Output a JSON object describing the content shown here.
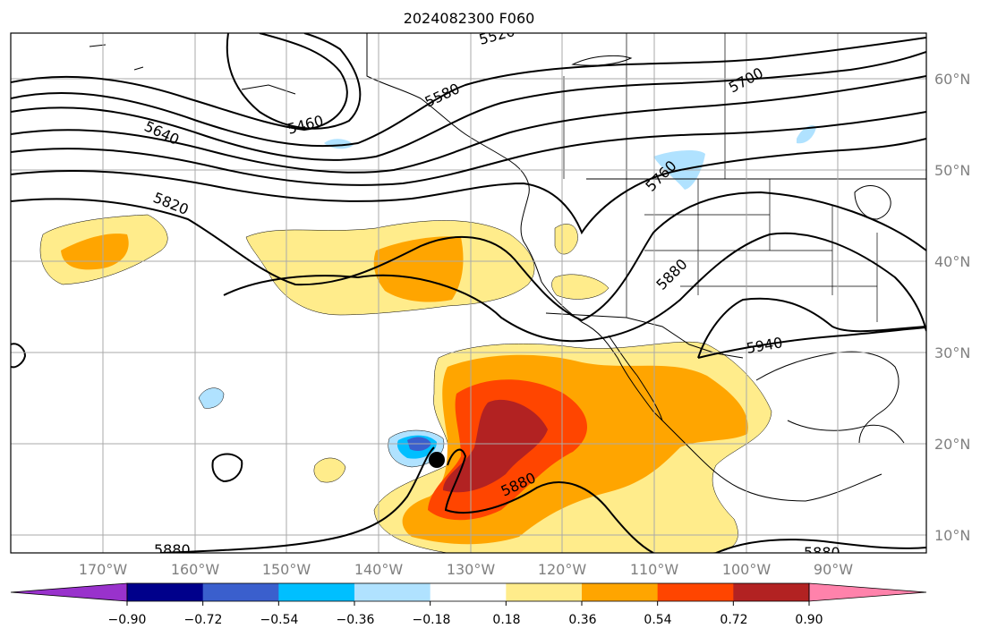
{
  "title": "2024082300 F060",
  "map": {
    "lon_labels": [
      "170°W",
      "160°W",
      "150°W",
      "140°W",
      "130°W",
      "120°W",
      "110°W",
      "100°W",
      "90°W"
    ],
    "lat_labels": [
      "60°N",
      "50°N",
      "40°N",
      "30°N",
      "20°N",
      "10°N"
    ],
    "grid": true,
    "contour_labels": [
      "5520",
      "5580",
      "5700",
      "5460",
      "5640",
      "5760",
      "5820",
      "5880",
      "5940",
      "5880",
      "5880",
      "5880"
    ],
    "marker": "storm-center-dot"
  },
  "colorbar": {
    "tick_labels": [
      "−0.90",
      "−0.72",
      "−0.54",
      "−0.36",
      "−0.18",
      "0.18",
      "0.36",
      "0.54",
      "0.72",
      "0.90"
    ],
    "colors": [
      "#9932cc",
      "#00008b",
      "#3a5fcd",
      "#00bfff",
      "#b0e2ff",
      "#ffffff",
      "#ffec8b",
      "#ffa500",
      "#ff4500",
      "#b22222",
      "#ff82ab"
    ]
  }
}
